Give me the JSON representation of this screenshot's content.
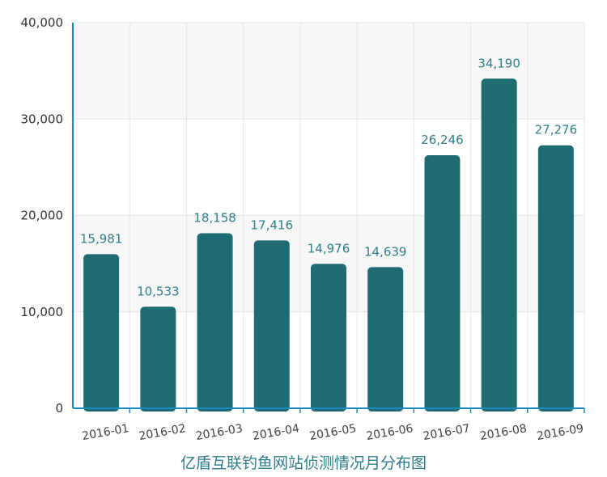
{
  "chart_data": {
    "type": "bar",
    "title": "亿盾互联钓鱼网站侦测情况月分布图",
    "categories": [
      "2016-01",
      "2016-02",
      "2016-03",
      "2016-04",
      "2016-05",
      "2016-06",
      "2016-07",
      "2016-08",
      "2016-09"
    ],
    "values": [
      15981,
      10533,
      18158,
      17416,
      14976,
      14639,
      26246,
      34190,
      27276
    ],
    "data_labels": [
      "15,981",
      "10,533",
      "18,158",
      "17,416",
      "14,976",
      "14,639",
      "26,246",
      "34,190",
      "27,276"
    ],
    "ylim": [
      0,
      40000
    ],
    "yticks": [
      0,
      10000,
      20000,
      30000,
      40000
    ],
    "ytick_labels": [
      "0",
      "10,000",
      "20,000",
      "30,000",
      "40,000"
    ],
    "xlabel": "",
    "ylabel": "",
    "grid": true,
    "legend": "none",
    "colors": {
      "bar": "#1e6b73",
      "axis": "#1a8bbf",
      "grid": "#e6e6e6",
      "band": "#f7f7f7",
      "data_label": "#2e7d8c"
    }
  }
}
